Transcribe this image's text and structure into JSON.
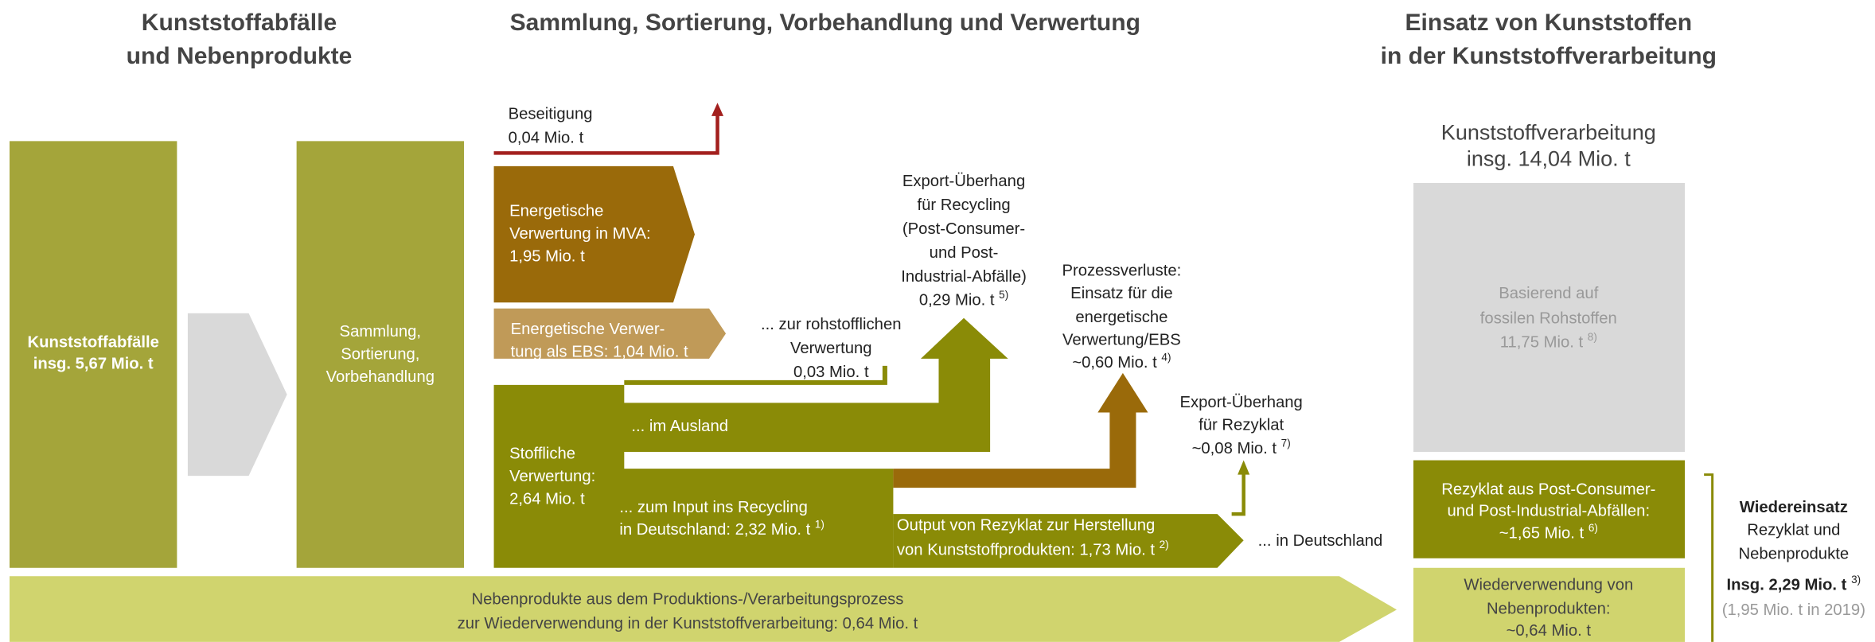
{
  "headers": {
    "left": [
      "Kunststoffabfälle",
      "und Nebenprodukte"
    ],
    "center": "Sammlung, Sortierung, Vorbehandlung und Verwertung",
    "right": [
      "Einsatz von Kunststoffen",
      "in der Kunststoffverarbeitung"
    ]
  },
  "nodes": {
    "waste": [
      "Kunststoffabfälle",
      "insg. 5,67 Mio. t"
    ],
    "collection": [
      "Sammlung,",
      "Sortierung,",
      "Vorbehandlung"
    ],
    "disposal": [
      "Beseitigung",
      "0,04 Mio. t"
    ],
    "mva": [
      "Energetische",
      "Verwertung in MVA:",
      "1,95 Mio. t"
    ],
    "ebs": [
      "Energetische Verwer-",
      "tung als EBS: 1,04 Mio. t"
    ],
    "material": [
      "Stoffliche",
      "Verwertung:",
      "2,64 Mio. t"
    ],
    "feedstock": [
      "... zur rohstofflichen",
      "Verwertung",
      "0,03 Mio. t"
    ],
    "abroad": "... im Ausland",
    "export_recycling": {
      "lines": [
        "Export-Überhang",
        "für Recycling",
        "(Post-Consumer-",
        "und Post-",
        "Industrial-Abfälle)"
      ],
      "amount": "0,29 Mio. t",
      "note": "5)"
    },
    "domestic_input": {
      "lines": [
        "... zum Input ins Recycling"
      ],
      "amount": "in Deutschland: 2,32 Mio. t",
      "note": "1)"
    },
    "process_losses": {
      "lines": [
        "Prozessverluste:",
        "Einsatz für die",
        "energetische",
        "Verwertung/EBS"
      ],
      "amount": "~0,60 Mio. t",
      "note": "4)"
    },
    "output": {
      "lines": [
        "Output von Rezyklat zur Herstellung"
      ],
      "amount": "von Kunststoffprodukten: 1,73 Mio. t",
      "note": "2)"
    },
    "export_recyclate": {
      "lines": [
        "Export-Überhang",
        "für Rezyklat"
      ],
      "amount": "~0,08 Mio. t",
      "note": "7)"
    },
    "domestic": "... in Deutschland",
    "byproducts": [
      "Nebenprodukte aus dem Produktions-/Verarbeitungsprozess",
      "zur Wiederverwendung in der Kunststoffverarbeitung: 0,64 Mio. t"
    ]
  },
  "processing": {
    "title": [
      "Kunststoffverarbeitung",
      "insg. 14,04 Mio. t"
    ],
    "fossil": {
      "lines": [
        "Basierend auf",
        "fossilen Rohstoffen"
      ],
      "amount": "11,75 Mio. t",
      "note": "8)"
    },
    "recyclate": {
      "lines": [
        "Rezyklat aus Post-Consumer-",
        "und Post-Industrial-Abfällen:"
      ],
      "amount": "~1,65 Mio. t",
      "note": "6)"
    },
    "reuse": [
      "Wiederverwendung von",
      "Nebenprodukten:",
      "~0,64 Mio. t"
    ]
  },
  "reuse_summary": {
    "title": "Wiedereinsatz",
    "lines": [
      "Rezyklat und",
      "Nebenprodukte"
    ],
    "amount": "Insg. 2,29 Mio. t",
    "note": "3)",
    "previous": "(1,95 Mio. t in 2019)"
  }
}
